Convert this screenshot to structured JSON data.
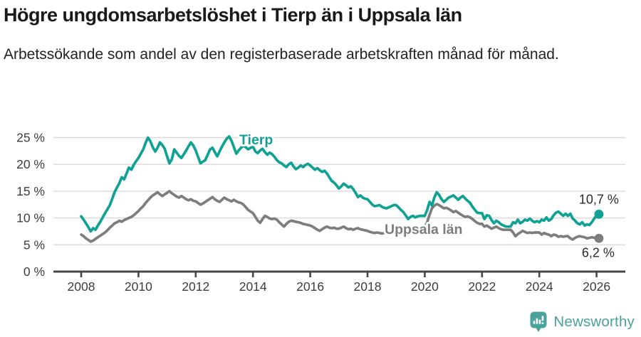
{
  "header": {
    "title": "Högre ungdomsarbetslöshet i Tierp än i Uppsala län",
    "subtitle": "Arbetssökande som andel av den registerbaserade arbetskraften månad för månad."
  },
  "footer": {
    "brand": "Newsworthy",
    "brand_color": "#4aa29c"
  },
  "colors": {
    "accent_teal": "#10a195",
    "series_gray": "#7d7d7d",
    "gridline": "#d9d9d9",
    "axis": "#474747",
    "tick_text": "#3d3d3d",
    "title_text": "#1a1a1a"
  },
  "chart_data": {
    "type": "line",
    "title": "Högre ungdomsarbetslöshet i Tierp än i Uppsala län",
    "subtitle": "Arbetssökande som andel av den registerbaserade arbetskraften månad för månad.",
    "x_unit": "month",
    "x_start": "2008-01",
    "x_end": "2026-02",
    "grid": "horizontal",
    "legend_position": "inline-labels",
    "ylim": [
      0,
      26
    ],
    "y_tick_values": [
      0,
      5,
      10,
      15,
      20,
      25
    ],
    "y_tick_labels": [
      "0 %",
      "5 %",
      "10 %",
      "15 %",
      "20 %",
      "25 %"
    ],
    "x_tick_values": [
      2008,
      2010,
      2012,
      2014,
      2016,
      2018,
      2020,
      2022,
      2024,
      2026
    ],
    "x_tick_labels": [
      "2008",
      "2010",
      "2012",
      "2014",
      "2016",
      "2018",
      "2020",
      "2022",
      "2024",
      "2026"
    ],
    "series": [
      {
        "name": "Tierp",
        "color": "#10a195",
        "end_value": 10.7,
        "end_label": "10,7 %",
        "values": [
          10.3,
          9.7,
          9.0,
          8.3,
          7.5,
          8.1,
          7.8,
          8.6,
          9.3,
          10.1,
          10.9,
          11.6,
          12.4,
          13.6,
          14.8,
          15.7,
          16.5,
          17.6,
          17.2,
          18.3,
          19.4,
          19.0,
          19.9,
          20.6,
          21.2,
          22.0,
          22.8,
          24.0,
          25.0,
          24.3,
          23.2,
          22.4,
          23.1,
          24.1,
          23.6,
          22.9,
          21.5,
          20.2,
          21.0,
          22.8,
          22.2,
          21.6,
          21.2,
          21.9,
          22.6,
          23.4,
          24.1,
          23.5,
          22.6,
          21.4,
          20.2,
          20.5,
          20.8,
          21.8,
          22.8,
          23.1,
          22.3,
          21.5,
          22.4,
          23.3,
          24.1,
          24.8,
          25.2,
          24.4,
          23.2,
          22.0,
          22.6,
          23.1,
          23.5,
          23.2,
          22.8,
          23.1,
          23.3,
          22.4,
          22.1,
          22.6,
          22.9,
          22.3,
          21.8,
          22.2,
          21.9,
          21.4,
          20.8,
          20.4,
          20.2,
          19.8,
          19.5,
          20.0,
          20.3,
          19.6,
          19.1,
          19.4,
          19.8,
          19.5,
          19.9,
          20.1,
          19.8,
          19.4,
          19.0,
          19.3,
          18.9,
          18.6,
          18.8,
          18.3,
          17.6,
          16.9,
          16.6,
          16.1,
          15.5,
          15.9,
          16.4,
          16.1,
          15.7,
          15.9,
          15.4,
          14.7,
          13.9,
          14.2,
          13.8,
          13.6,
          13.5,
          13.0,
          12.5,
          12.2,
          12.3,
          12.4,
          12.1,
          11.9,
          11.8,
          12.0,
          12.2,
          12.4,
          12.4,
          12.0,
          11.5,
          11.1,
          10.5,
          9.8,
          10.2,
          10.4,
          10.1,
          10.3,
          10.4,
          10.4,
          10.4,
          11.5,
          13.0,
          12.3,
          13.8,
          14.8,
          14.3,
          13.5,
          13.0,
          13.4,
          13.8,
          14.0,
          14.2,
          13.8,
          13.4,
          13.8,
          14.1,
          13.6,
          13.2,
          12.8,
          12.1,
          11.5,
          11.0,
          10.9,
          10.9,
          9.8,
          10.5,
          10.4,
          9.6,
          9.0,
          9.5,
          9.2,
          8.8,
          8.6,
          8.4,
          8.4,
          8.4,
          9.2,
          9.0,
          9.7,
          9.0,
          9.3,
          9.7,
          9.5,
          9.9,
          9.5,
          9.2,
          9.4,
          9.2,
          9.7,
          9.5,
          10.1,
          9.5,
          9.8,
          10.5,
          11.0,
          11.2,
          10.8,
          10.4,
          10.8,
          10.4,
          10.8,
          9.9,
          9.5,
          9.0,
          8.8,
          9.2,
          8.6,
          8.8,
          8.7,
          9.2,
          9.9,
          10.4,
          10.7
        ]
      },
      {
        "name": "Uppsala län",
        "color": "#7d7d7d",
        "end_value": 6.2,
        "end_label": "6,2 %",
        "values": [
          6.9,
          6.6,
          6.2,
          5.9,
          5.6,
          5.8,
          6.1,
          6.4,
          6.7,
          7.0,
          7.3,
          7.7,
          8.2,
          8.6,
          9.0,
          9.2,
          9.5,
          9.3,
          9.6,
          9.8,
          10.0,
          10.2,
          10.5,
          10.9,
          11.3,
          11.8,
          12.2,
          12.8,
          13.3,
          13.8,
          14.2,
          14.5,
          14.8,
          14.4,
          14.1,
          14.4,
          14.7,
          15.0,
          14.6,
          14.3,
          14.0,
          13.8,
          14.1,
          13.8,
          13.5,
          13.3,
          13.5,
          13.2,
          13.1,
          12.8,
          12.5,
          12.7,
          13.0,
          13.3,
          13.6,
          13.9,
          13.5,
          13.2,
          13.0,
          13.4,
          13.8,
          13.5,
          13.3,
          13.1,
          13.4,
          13.1,
          12.9,
          12.8,
          12.5,
          12.0,
          11.5,
          11.2,
          10.9,
          10.2,
          9.5,
          9.1,
          9.8,
          10.4,
          10.2,
          9.9,
          9.8,
          9.9,
          9.7,
          9.2,
          8.8,
          8.4,
          8.9,
          9.3,
          9.5,
          9.4,
          9.3,
          9.2,
          9.1,
          8.9,
          8.8,
          8.7,
          8.6,
          8.4,
          8.1,
          7.8,
          7.6,
          7.9,
          8.2,
          8.4,
          8.2,
          8.1,
          8.2,
          8.0,
          8.0,
          8.2,
          8.4,
          8.1,
          7.9,
          8.0,
          7.8,
          8.0,
          8.1,
          7.9,
          7.8,
          7.7,
          7.6,
          7.4,
          7.3,
          7.2,
          7.3,
          7.2,
          7.1,
          7.2,
          7.3,
          7.4,
          7.5,
          7.4,
          7.5,
          7.6,
          7.4,
          7.3,
          7.4,
          7.5,
          7.6,
          7.5,
          7.4,
          7.5,
          7.6,
          7.8,
          8.4,
          9.2,
          10.6,
          11.8,
          12.3,
          12.6,
          12.4,
          12.1,
          11.8,
          11.9,
          11.7,
          11.4,
          11.1,
          11.3,
          11.0,
          10.7,
          10.4,
          10.2,
          10.3,
          10.1,
          9.8,
          9.4,
          9.1,
          8.9,
          8.9,
          8.4,
          8.6,
          8.3,
          8.0,
          8.2,
          8.4,
          8.1,
          7.9,
          7.8,
          7.8,
          7.8,
          7.8,
          7.3,
          6.6,
          7.0,
          7.3,
          7.6,
          7.4,
          7.2,
          7.3,
          7.2,
          7.3,
          7.3,
          7.3,
          6.9,
          7.2,
          7.0,
          6.9,
          6.6,
          6.9,
          6.8,
          6.5,
          6.6,
          6.5,
          6.6,
          6.6,
          6.2,
          6.0,
          6.3,
          6.5,
          6.6,
          6.5,
          6.4,
          6.2,
          6.3,
          6.4,
          6.3,
          6.3,
          6.2
        ]
      }
    ]
  }
}
